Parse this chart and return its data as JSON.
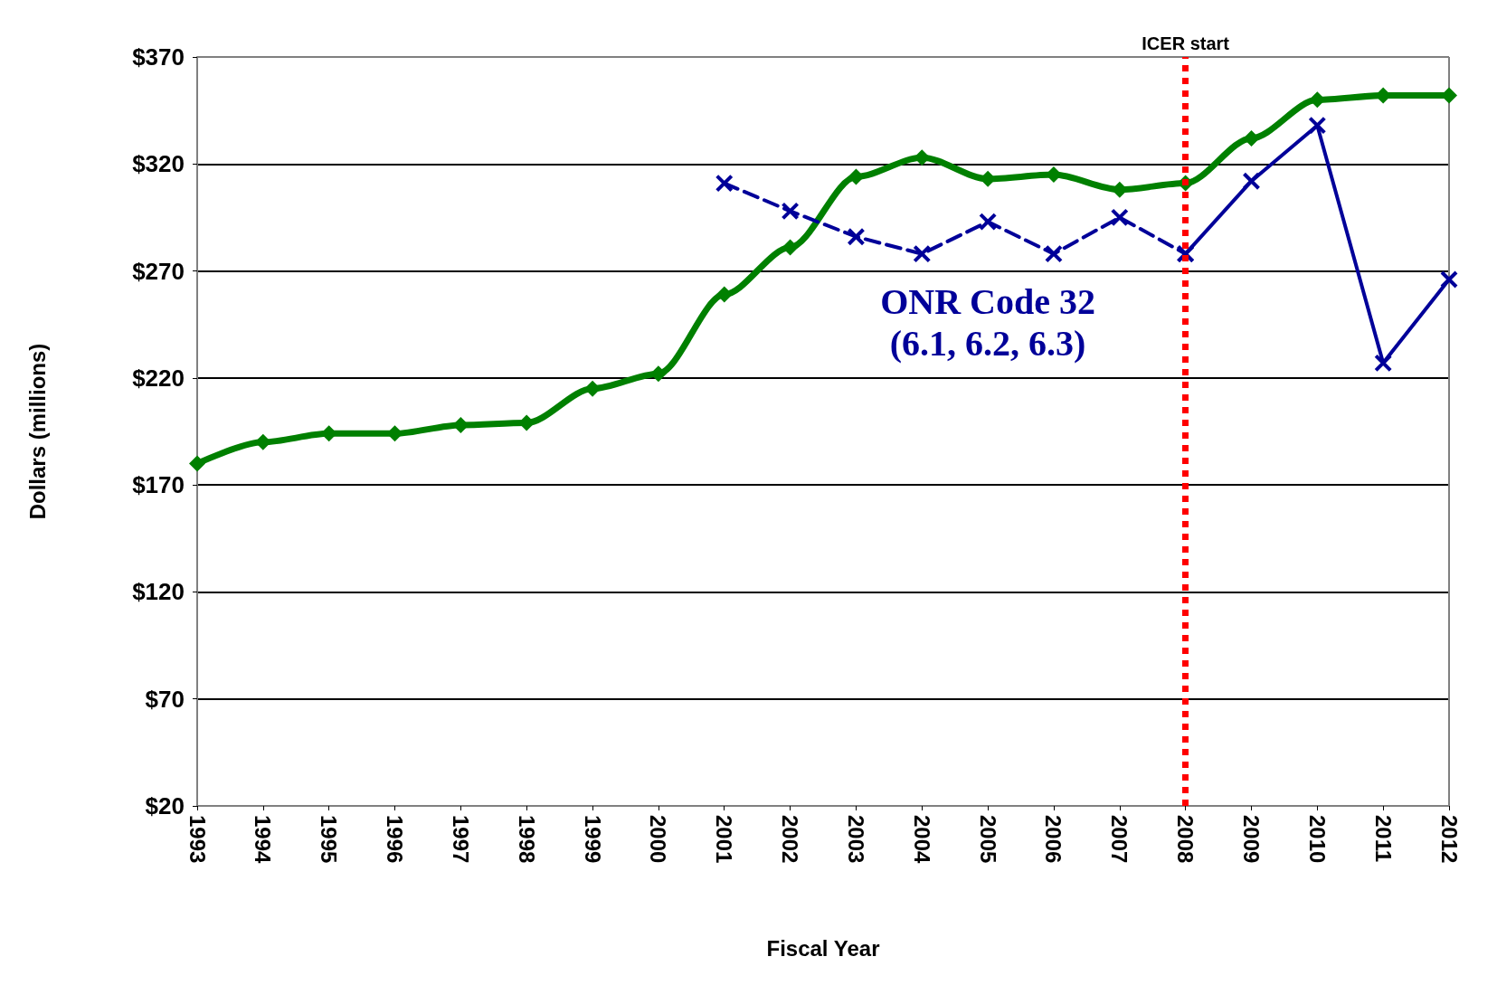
{
  "chart_data": {
    "type": "line",
    "xlabel": "Fiscal Year",
    "ylabel": "Dollars (millions)",
    "categories": [
      "1993",
      "1994",
      "1995",
      "1996",
      "1997",
      "1998",
      "1999",
      "2000",
      "2001",
      "2002",
      "2003",
      "2004",
      "2005",
      "2006",
      "2007",
      "2008",
      "2009",
      "2010",
      "2011",
      "2012"
    ],
    "series": [
      {
        "color": "#008000",
        "marker": "diamond",
        "line_style": "solid",
        "values": [
          180,
          190,
          194,
          194,
          198,
          199,
          215,
          222,
          259,
          281,
          314,
          323,
          313,
          315,
          308,
          311,
          332,
          350,
          352,
          352
        ]
      },
      {
        "name": "ONR Code 32\n(6.1, 6.2, 6.3)",
        "color": "#000099",
        "marker": "cross",
        "line_style": "dashed",
        "values": [
          null,
          null,
          null,
          null,
          null,
          null,
          null,
          null,
          311,
          298,
          286,
          278,
          293,
          278,
          295,
          278,
          null,
          null,
          null,
          null
        ]
      },
      {
        "color": "#000099",
        "marker": "cross",
        "line_style": "solid",
        "values": [
          null,
          null,
          null,
          null,
          null,
          null,
          null,
          null,
          null,
          null,
          null,
          null,
          null,
          null,
          null,
          278,
          312,
          338,
          227,
          266
        ]
      }
    ],
    "ylim": [
      20,
      370
    ],
    "yticks": [
      {
        "value": 20,
        "label": "$20"
      },
      {
        "value": 70,
        "label": "$70"
      },
      {
        "value": 120,
        "label": "$120"
      },
      {
        "value": 170,
        "label": "$170"
      },
      {
        "value": 220,
        "label": "$220"
      },
      {
        "value": 270,
        "label": "$270"
      },
      {
        "value": 320,
        "label": "$320"
      },
      {
        "value": 370,
        "label": "$370"
      }
    ],
    "grid": "y",
    "legend": false,
    "ref_lines": [
      {
        "axis": "x",
        "value": "2008",
        "label": "ICER start",
        "color": "#ff0000",
        "line_style": "dotted"
      }
    ]
  }
}
